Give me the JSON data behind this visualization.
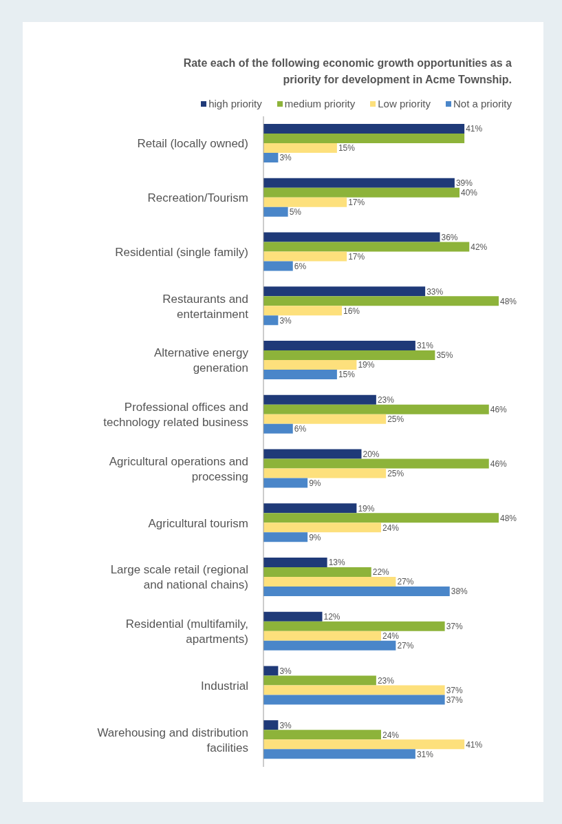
{
  "chart_data": {
    "type": "bar",
    "orientation": "horizontal",
    "title": "Rate each of the following economic growth opportunities as a priority for development in Acme Township.",
    "legend": "top",
    "categories": [
      "Retail (locally owned)",
      "Recreation/Tourism",
      "Residential (single family)",
      "Restaurants and entertainment",
      "Alternative energy generation",
      "Professional offices and technology related business",
      "Agricultural operations and processing",
      "Agricultural tourism",
      "Large scale retail (regional and national chains)",
      "Residential (multifamily, apartments)",
      "Industrial",
      "Warehousing and distribution facilities"
    ],
    "series": [
      {
        "name": "high priority",
        "color": "#1f3a78",
        "values": [
          41,
          39,
          36,
          33,
          31,
          23,
          20,
          19,
          13,
          12,
          3,
          3
        ],
        "value_labels": [
          "41%",
          "39%",
          "36%",
          "33%",
          "31%",
          "23%",
          "20%",
          "19%",
          "13%",
          "12%",
          "3%",
          "3%"
        ]
      },
      {
        "name": "medium priority",
        "color": "#8db33a",
        "values": [
          41,
          40,
          42,
          48,
          35,
          46,
          46,
          48,
          22,
          37,
          23,
          24
        ],
        "value_labels": [
          null,
          "40%",
          "42%",
          "48%",
          "35%",
          "46%",
          "46%",
          "48%",
          "22%",
          "37%",
          "23%",
          "24%"
        ]
      },
      {
        "name": "Low priority",
        "color": "#fde07c",
        "values": [
          15,
          17,
          17,
          16,
          19,
          25,
          25,
          24,
          27,
          24,
          37,
          41
        ],
        "value_labels": [
          "15%",
          "17%",
          "17%",
          "16%",
          "19%",
          "25%",
          "25%",
          "24%",
          "27%",
          "24%",
          "37%",
          "41%"
        ]
      },
      {
        "name": "Not a priority",
        "color": "#4a86c9",
        "values": [
          3,
          5,
          6,
          3,
          15,
          6,
          9,
          9,
          38,
          27,
          37,
          31
        ],
        "value_labels": [
          "3%",
          "5%",
          "6%",
          "3%",
          "15%",
          "6%",
          "9%",
          "9%",
          "38%",
          "27%",
          "37%",
          "31%"
        ]
      }
    ]
  }
}
